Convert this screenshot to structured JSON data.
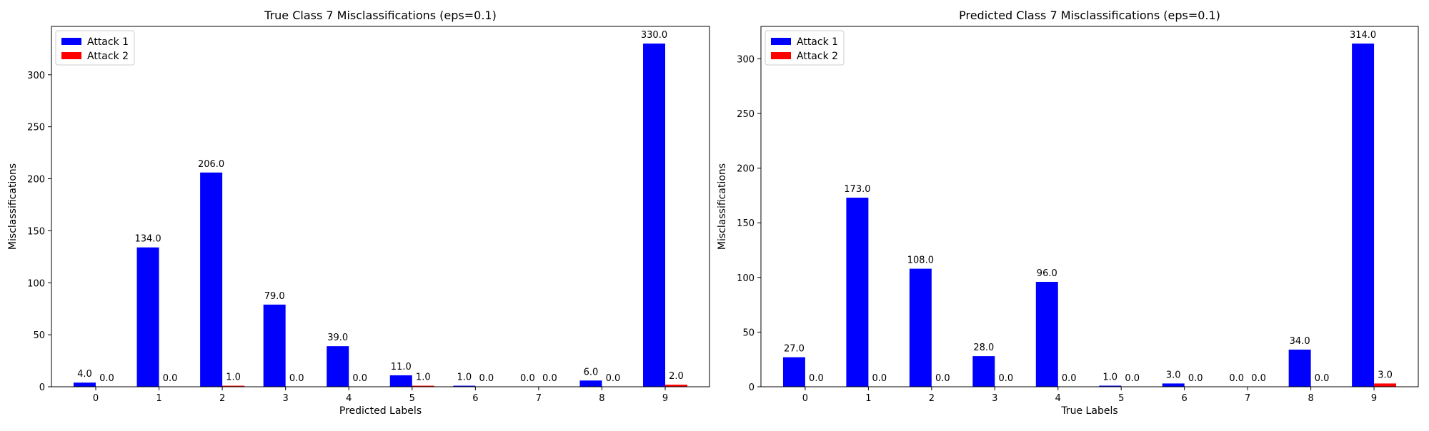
{
  "chart_data": [
    {
      "type": "bar",
      "title": "True Class 7 Misclassifications (eps=0.1)",
      "xlabel": "Predicted Labels",
      "ylabel": "Misclassifications",
      "categories": [
        "0",
        "1",
        "2",
        "3",
        "4",
        "5",
        "6",
        "7",
        "8",
        "9"
      ],
      "series": [
        {
          "name": "Attack 1",
          "color": "#0000ff",
          "values": [
            4.0,
            134.0,
            206.0,
            79.0,
            39.0,
            11.0,
            1.0,
            0.0,
            6.0,
            330.0
          ],
          "labels": [
            "4.0",
            "134.0",
            "206.0",
            "79.0",
            "39.0",
            "11.0",
            "1.0",
            "0.0",
            "6.0",
            "330.0"
          ]
        },
        {
          "name": "Attack 2",
          "color": "#ff0000",
          "values": [
            0.0,
            0.0,
            1.0,
            0.0,
            0.0,
            1.0,
            0.0,
            0.0,
            0.0,
            2.0
          ],
          "labels": [
            "0.0",
            "0.0",
            "1.0",
            "0.0",
            "0.0",
            "1.0",
            "0.0",
            "0.0",
            "0.0",
            "2.0"
          ]
        }
      ],
      "ylim": [
        0,
        346.5
      ],
      "yticks": [
        0,
        50,
        100,
        150,
        200,
        250,
        300
      ],
      "ytick_labels": [
        "0",
        "50",
        "100",
        "150",
        "200",
        "250",
        "300"
      ],
      "legend": "top-left",
      "grid": false
    },
    {
      "type": "bar",
      "title": "Predicted Class 7 Misclassifications (eps=0.1)",
      "xlabel": "True Labels",
      "ylabel": "Misclassifications",
      "categories": [
        "0",
        "1",
        "2",
        "3",
        "4",
        "5",
        "6",
        "7",
        "8",
        "9"
      ],
      "series": [
        {
          "name": "Attack 1",
          "color": "#0000ff",
          "values": [
            27.0,
            173.0,
            108.0,
            28.0,
            96.0,
            1.0,
            3.0,
            0.0,
            34.0,
            314.0
          ],
          "labels": [
            "27.0",
            "173.0",
            "108.0",
            "28.0",
            "96.0",
            "1.0",
            "3.0",
            "0.0",
            "34.0",
            "314.0"
          ]
        },
        {
          "name": "Attack 2",
          "color": "#ff0000",
          "values": [
            0.0,
            0.0,
            0.0,
            0.0,
            0.0,
            0.0,
            0.0,
            0.0,
            0.0,
            3.0
          ],
          "labels": [
            "0.0",
            "0.0",
            "0.0",
            "0.0",
            "0.0",
            "0.0",
            "0.0",
            "0.0",
            "0.0",
            "3.0"
          ]
        }
      ],
      "ylim": [
        0,
        329.7
      ],
      "yticks": [
        0,
        50,
        100,
        150,
        200,
        250,
        300
      ],
      "ytick_labels": [
        "0",
        "50",
        "100",
        "150",
        "200",
        "250",
        "300"
      ],
      "legend": "top-left",
      "grid": false
    }
  ]
}
